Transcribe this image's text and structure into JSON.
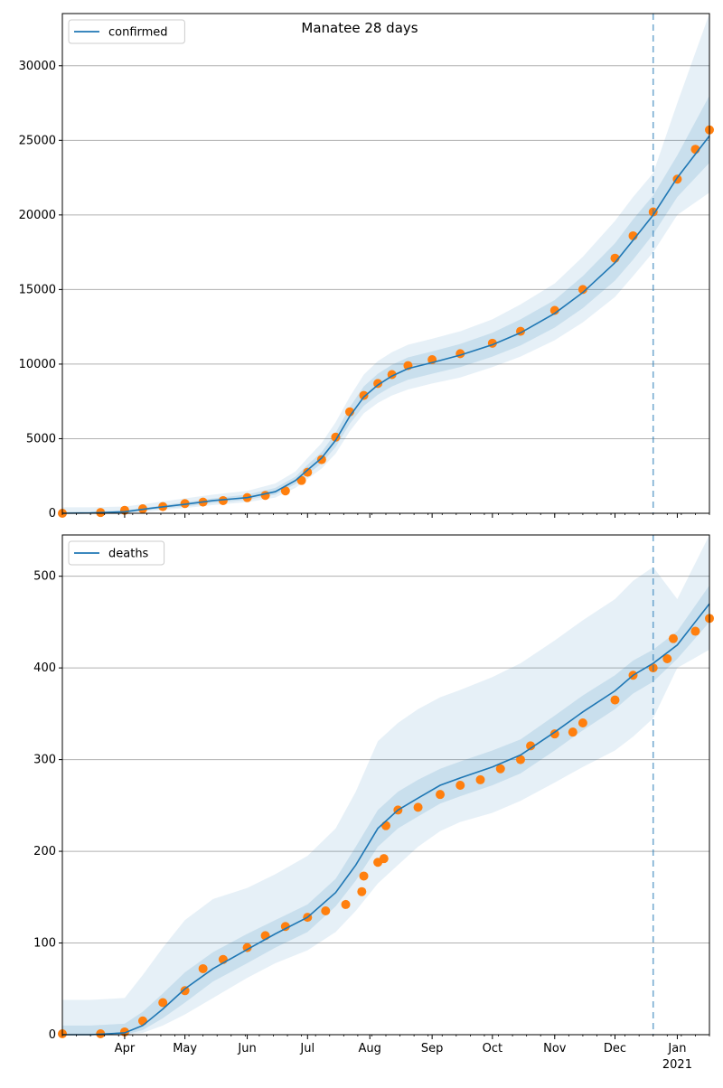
{
  "figure": {
    "title": "Manatee 28 days"
  },
  "colors": {
    "model_line": "#1f77b4",
    "band_fill": "#1f77b4",
    "observed": "#ff7f0e",
    "grid": "#b0b0b0",
    "divider": "#1f77b4"
  },
  "chart_data": [
    {
      "type": "line",
      "panel": "top",
      "title": "Manatee 28 days",
      "legend": {
        "label": "confirmed",
        "placement": "top-left"
      },
      "ylim": [
        0,
        33500
      ],
      "yticks": [
        0,
        5000,
        10000,
        15000,
        20000,
        25000,
        30000
      ],
      "xlim": [
        "2020-03-01",
        "2021-01-17"
      ],
      "xtick_labels": [
        "Apr",
        "May",
        "Jun",
        "Jul",
        "Aug",
        "Sep",
        "Oct",
        "Nov",
        "Dec",
        "Jan",
        "2021"
      ],
      "show_xtick_labels": false,
      "grid_y": true,
      "forecast_start": "2020-12-20",
      "series": [
        {
          "name": "confirmed",
          "kind": "model",
          "x": [
            "2020-03-01",
            "2020-03-15",
            "2020-04-01",
            "2020-04-15",
            "2020-05-01",
            "2020-05-15",
            "2020-06-01",
            "2020-06-15",
            "2020-06-25",
            "2020-07-01",
            "2020-07-08",
            "2020-07-15",
            "2020-07-22",
            "2020-07-29",
            "2020-08-05",
            "2020-08-12",
            "2020-08-20",
            "2020-09-01",
            "2020-09-15",
            "2020-10-01",
            "2020-10-15",
            "2020-11-01",
            "2020-11-15",
            "2020-12-01",
            "2020-12-10",
            "2020-12-20",
            "2021-01-01",
            "2021-01-17"
          ],
          "y": [
            0,
            20,
            100,
            350,
            600,
            850,
            1050,
            1450,
            2200,
            2900,
            3700,
            4900,
            6500,
            7800,
            8600,
            9200,
            9700,
            10100,
            10600,
            11300,
            12100,
            13400,
            14800,
            16800,
            18300,
            20000,
            22500,
            25300
          ],
          "band_upper_95": [
            400,
            400,
            450,
            700,
            1000,
            1250,
            1500,
            2000,
            2800,
            3700,
            4700,
            6100,
            7800,
            9300,
            10200,
            10800,
            11300,
            11700,
            12200,
            13000,
            14000,
            15400,
            17200,
            19600,
            21200,
            22800,
            27500,
            33500
          ],
          "band_lower_95": [
            0,
            0,
            0,
            150,
            350,
            550,
            750,
            1050,
            1700,
            2300,
            3000,
            4000,
            5500,
            6700,
            7400,
            7900,
            8300,
            8700,
            9100,
            9800,
            10500,
            11600,
            12800,
            14500,
            15900,
            17500,
            20000,
            21500
          ],
          "band_upper_50": [
            100,
            120,
            200,
            450,
            750,
            1000,
            1250,
            1700,
            2450,
            3250,
            4100,
            5400,
            7100,
            8500,
            9350,
            9950,
            10450,
            10850,
            11350,
            12100,
            13000,
            14300,
            15900,
            18100,
            19700,
            21300,
            24000,
            28000
          ],
          "band_lower_50": [
            0,
            0,
            20,
            250,
            450,
            700,
            900,
            1250,
            1950,
            2600,
            3350,
            4450,
            6000,
            7200,
            7950,
            8500,
            8950,
            9350,
            9800,
            10500,
            11250,
            12450,
            13750,
            15600,
            17000,
            18700,
            21200,
            23500
          ]
        },
        {
          "name": "observed confirmed",
          "kind": "observed",
          "x": [
            "2020-03-01",
            "2020-03-20",
            "2020-04-01",
            "2020-04-10",
            "2020-04-20",
            "2020-05-01",
            "2020-05-10",
            "2020-05-20",
            "2020-06-01",
            "2020-06-10",
            "2020-06-20",
            "2020-06-28",
            "2020-07-01",
            "2020-07-08",
            "2020-07-15",
            "2020-07-22",
            "2020-07-29",
            "2020-08-05",
            "2020-08-12",
            "2020-08-20",
            "2020-09-01",
            "2020-09-15",
            "2020-10-01",
            "2020-10-15",
            "2020-11-01",
            "2020-11-15",
            "2020-12-01",
            "2020-12-10",
            "2020-12-20",
            "2021-01-01",
            "2021-01-10",
            "2021-01-17"
          ],
          "y": [
            0,
            50,
            200,
            300,
            450,
            650,
            750,
            850,
            1050,
            1200,
            1500,
            2200,
            2750,
            3600,
            5100,
            6800,
            7900,
            8700,
            9300,
            9900,
            10300,
            10700,
            11400,
            12200,
            13600,
            15000,
            17100,
            18600,
            20200,
            22400,
            24400,
            25700
          ]
        }
      ]
    },
    {
      "type": "line",
      "panel": "bottom",
      "legend": {
        "label": "deaths",
        "placement": "top-left"
      },
      "ylim": [
        0,
        545
      ],
      "yticks": [
        0,
        100,
        200,
        300,
        400,
        500
      ],
      "xlim": [
        "2020-03-01",
        "2021-01-17"
      ],
      "xtick_labels": [
        "Apr",
        "May",
        "Jun",
        "Jul",
        "Aug",
        "Sep",
        "Oct",
        "Nov",
        "Dec",
        "Jan",
        "2021"
      ],
      "show_xtick_labels": true,
      "grid_y": true,
      "forecast_start": "2020-12-20",
      "series": [
        {
          "name": "deaths",
          "kind": "model",
          "x": [
            "2020-03-01",
            "2020-03-15",
            "2020-04-01",
            "2020-04-10",
            "2020-04-20",
            "2020-05-01",
            "2020-05-15",
            "2020-06-01",
            "2020-06-15",
            "2020-07-01",
            "2020-07-15",
            "2020-07-25",
            "2020-08-05",
            "2020-08-15",
            "2020-08-25",
            "2020-09-05",
            "2020-09-15",
            "2020-10-01",
            "2020-10-15",
            "2020-11-01",
            "2020-11-15",
            "2020-12-01",
            "2020-12-10",
            "2020-12-20",
            "2021-01-01",
            "2021-01-17"
          ],
          "y": [
            0,
            0,
            2,
            10,
            28,
            50,
            72,
            93,
            110,
            128,
            155,
            185,
            225,
            245,
            258,
            272,
            280,
            292,
            305,
            330,
            352,
            375,
            392,
            405,
            425,
            470
          ],
          "band_upper_95": [
            38,
            38,
            40,
            65,
            95,
            125,
            148,
            160,
            175,
            195,
            225,
            265,
            320,
            340,
            355,
            368,
            376,
            390,
            405,
            430,
            452,
            475,
            495,
            510,
            475,
            545
          ],
          "band_lower_95": [
            0,
            0,
            0,
            2,
            10,
            22,
            40,
            62,
            78,
            92,
            112,
            135,
            165,
            185,
            205,
            222,
            232,
            242,
            255,
            275,
            292,
            310,
            325,
            345,
            400,
            420
          ],
          "band_upper_50": [
            10,
            10,
            12,
            25,
            45,
            68,
            90,
            110,
            125,
            142,
            170,
            205,
            245,
            265,
            278,
            290,
            298,
            310,
            322,
            348,
            370,
            392,
            408,
            420,
            440,
            490
          ],
          "band_lower_50": [
            0,
            0,
            0,
            5,
            18,
            35,
            58,
            78,
            95,
            112,
            140,
            168,
            205,
            225,
            238,
            252,
            260,
            272,
            285,
            310,
            332,
            355,
            372,
            385,
            410,
            450
          ]
        },
        {
          "name": "observed deaths",
          "kind": "observed",
          "x": [
            "2020-03-01",
            "2020-03-20",
            "2020-04-01",
            "2020-04-10",
            "2020-04-20",
            "2020-05-01",
            "2020-05-10",
            "2020-05-20",
            "2020-06-01",
            "2020-06-10",
            "2020-06-20",
            "2020-07-01",
            "2020-07-10",
            "2020-07-20",
            "2020-07-28",
            "2020-07-29",
            "2020-08-05",
            "2020-08-08",
            "2020-08-09",
            "2020-08-15",
            "2020-08-25",
            "2020-09-05",
            "2020-09-15",
            "2020-09-25",
            "2020-10-05",
            "2020-10-15",
            "2020-10-20",
            "2020-11-01",
            "2020-11-10",
            "2020-11-15",
            "2020-12-01",
            "2020-12-10",
            "2020-12-20",
            "2020-12-27",
            "2020-12-30",
            "2021-01-10",
            "2021-01-17"
          ],
          "y": [
            1,
            1,
            3,
            15,
            35,
            48,
            72,
            82,
            95,
            108,
            118,
            128,
            135,
            142,
            156,
            173,
            188,
            192,
            228,
            245,
            248,
            262,
            272,
            278,
            290,
            300,
            315,
            328,
            330,
            340,
            365,
            392,
            400,
            410,
            432,
            440,
            454
          ]
        }
      ]
    }
  ]
}
